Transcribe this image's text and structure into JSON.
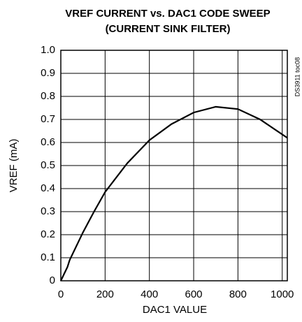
{
  "chart_data": {
    "type": "line",
    "title": [
      "VREF CURRENT vs. DAC1 CODE SWEEP",
      "(CURRENT SINK FILTER)"
    ],
    "x_label": "DAC1 VALUE",
    "y_label": "VREF (mA)",
    "annotation": "DS3911 toc08",
    "x": [
      0,
      10,
      30,
      40,
      100,
      150,
      200,
      300,
      400,
      500,
      600,
      700,
      800,
      900,
      1000,
      1023
    ],
    "series": [
      {
        "name": "VREF",
        "color": "#000000",
        "values": [
          0,
          0.02,
          0.06,
          0.09,
          0.21,
          0.3,
          0.385,
          0.51,
          0.61,
          0.68,
          0.73,
          0.755,
          0.745,
          0.7,
          0.635,
          0.62
        ]
      }
    ],
    "xlim": [
      0,
      1023
    ],
    "xticks": [
      0,
      200,
      400,
      600,
      800,
      1000
    ],
    "ylim": [
      0,
      1.0
    ],
    "yticks": [
      0,
      0.1,
      0.2,
      0.3,
      0.4,
      0.5,
      0.6,
      0.7,
      0.8,
      0.9,
      {
        "value": 1.0,
        "label": "1.0"
      }
    ],
    "grid": true
  }
}
